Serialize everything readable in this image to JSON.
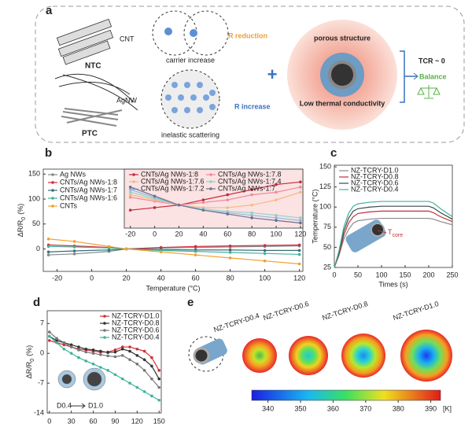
{
  "panel_a": {
    "label": "a",
    "cnt": "CNT",
    "ntc": "NTC",
    "agnw": "AgNW",
    "ptc": "PTC",
    "carrier_increase": "carrier increase",
    "r_reduction": "R reduction",
    "inelastic_scattering": "inelastic scattering",
    "r_increase": "R increase",
    "porous_structure": "porous structure",
    "low_thermal_conductivity": "Low thermal conductivity",
    "tcr": "TCR ~ 0",
    "balance": "Balance"
  },
  "chart_data": [
    {
      "type": "line",
      "panel": "b",
      "markers": true,
      "legend": "upper left",
      "xlabel": "Temperature (°C)",
      "ylabel": {
        "text": "ΔR/R",
        "sub": "0",
        "unit": "(%)"
      },
      "x": [
        -25,
        -10,
        10,
        20,
        40,
        60,
        80,
        100,
        120
      ],
      "xlim": [
        -28,
        122
      ],
      "xticks": [
        -20,
        0,
        20,
        40,
        60,
        80,
        100,
        120
      ],
      "ylim": [
        -45,
        160
      ],
      "yticks": [
        0,
        50,
        100,
        150
      ],
      "series": [
        {
          "name": "Ag NWs",
          "color": "#7f8c8d",
          "values": [
            -12,
            -10,
            -5,
            0,
            2,
            3,
            4,
            5,
            6
          ]
        },
        {
          "name": "CNTs/Ag NWs-1:8",
          "color": "#d62b3a",
          "values": [
            8,
            6,
            3,
            0,
            3,
            5,
            6,
            7,
            8
          ]
        },
        {
          "name": "CNTs/Ag NWs-1:7",
          "color": "#3d6d78",
          "values": [
            -6,
            -4,
            -2,
            0,
            -1,
            -2,
            -2,
            -3,
            -3
          ]
        },
        {
          "name": "CNTs/Ag NWs-1:6",
          "color": "#3fb39b",
          "values": [
            5,
            4,
            2,
            0,
            -3,
            -5,
            -7,
            -9,
            -11
          ]
        },
        {
          "name": "CNTs",
          "color": "#f0a030",
          "values": [
            20,
            15,
            5,
            0,
            -6,
            -12,
            -18,
            -24,
            -30
          ]
        }
      ]
    },
    {
      "type": "line",
      "markers": true,
      "legend": "upper left",
      "x": [
        -20,
        0,
        20,
        40,
        60,
        80,
        100,
        120
      ],
      "xlim": [
        -25,
        122
      ],
      "xticks": [
        -20,
        0,
        20,
        40,
        60,
        80,
        100,
        120
      ],
      "ylim": [
        -9,
        14
      ],
      "series": [
        {
          "name": "CNTs/Ag NWs-1:8",
          "color": "#c8283c",
          "values": [
            -2,
            -1,
            0,
            2,
            4,
            6,
            8,
            9
          ]
        },
        {
          "name": "CNTs/Ag NWs-1:7.8",
          "color": "#f08a9c",
          "values": [
            3,
            1.5,
            0,
            1,
            2,
            4,
            5,
            7
          ]
        },
        {
          "name": "CNTs/Ag NWs-1:7.6",
          "color": "#f5b983",
          "values": [
            4,
            2,
            0,
            -1,
            -1,
            0,
            2,
            5
          ]
        },
        {
          "name": "CNTs/Ag NWs-1:7.4",
          "color": "#8fd3c9",
          "values": [
            5,
            2.5,
            0,
            -1.5,
            -2.5,
            -3,
            -4,
            -5
          ]
        },
        {
          "name": "CNTs/Ag NWs-1:7.2",
          "color": "#8fb8e0",
          "values": [
            6,
            3,
            0,
            -2,
            -3,
            -4,
            -5,
            -6
          ]
        },
        {
          "name": "CNTs/Ag NWs-1:7",
          "color": "#6f6f8f",
          "values": [
            7,
            3.5,
            0,
            -2,
            -3.5,
            -5,
            -6,
            -7
          ]
        }
      ]
    },
    {
      "type": "line",
      "panel": "c",
      "markers": false,
      "legend": "upper left",
      "xlabel": "Times (s)",
      "ylabel": "Temperature (°C)",
      "annotation": {
        "text": "T",
        "sub": "core"
      },
      "x": [
        0,
        10,
        20,
        30,
        40,
        50,
        75,
        100,
        125,
        150,
        175,
        200,
        210,
        225,
        250
      ],
      "xlim": [
        0,
        250
      ],
      "xticks": [
        0,
        50,
        100,
        150,
        200,
        250
      ],
      "ylim": [
        25,
        152
      ],
      "yticks": [
        25,
        50,
        75,
        100,
        125,
        150
      ],
      "series": [
        {
          "name": "NZ-TCRY-D1.0",
          "color": "#8a8a8a",
          "values": [
            25,
            40,
            60,
            72,
            80,
            83,
            85,
            86,
            86,
            86,
            86,
            86,
            85,
            82,
            78
          ]
        },
        {
          "name": "NZ-TCRY-D0.8",
          "color": "#c0303a",
          "values": [
            25,
            42,
            65,
            80,
            88,
            92,
            94,
            95,
            95,
            95,
            95,
            95,
            93,
            88,
            82
          ]
        },
        {
          "name": "NZ-TCRY-D0.6",
          "color": "#3b4a4a",
          "values": [
            25,
            44,
            70,
            86,
            95,
            98,
            100,
            101,
            101,
            101,
            101,
            101,
            99,
            93,
            85
          ]
        },
        {
          "name": "NZ-TCRY-D0.4",
          "color": "#3fb39b",
          "values": [
            25,
            46,
            75,
            92,
            101,
            104,
            106,
            107,
            107,
            107,
            107,
            107,
            105,
            98,
            88
          ]
        }
      ]
    },
    {
      "type": "line",
      "panel": "d",
      "markers": true,
      "legend": "upper right",
      "ylabel": {
        "text": "ΔR/R",
        "sub": "0",
        "unit": "(%)"
      },
      "inset_from": "D0.4",
      "inset_to": "D1.0",
      "x": [
        0,
        10,
        20,
        30,
        40,
        50,
        60,
        70,
        80,
        90,
        100,
        110,
        120,
        130,
        140,
        150
      ],
      "xlim": [
        -3,
        153
      ],
      "xticks": [
        0,
        30,
        60,
        90,
        120,
        150
      ],
      "ylim": [
        -14,
        10
      ],
      "yticks": [
        7,
        0,
        -7,
        -14
      ],
      "series": [
        {
          "name": "NZ-TCRY-D1.0",
          "color": "#d0303a",
          "values": [
            3,
            2.5,
            2,
            1.5,
            1,
            0.8,
            0.5,
            0.3,
            0.3,
            0.8,
            1.5,
            1.5,
            1,
            0.5,
            -1,
            -4
          ]
        },
        {
          "name": "NZ-TCRY-D0.8",
          "color": "#333333",
          "values": [
            4,
            3,
            2.5,
            2,
            1.5,
            1,
            0.8,
            0.5,
            0.2,
            0.3,
            1,
            0.5,
            -0.5,
            -1.5,
            -3,
            -6
          ]
        },
        {
          "name": "NZ-TCRY-D0.6",
          "color": "#777777",
          "values": [
            5,
            3.5,
            2.5,
            1.5,
            0.8,
            0.3,
            0,
            -0.3,
            -0.6,
            -0.8,
            -0.5,
            -1.5,
            -2.5,
            -4,
            -6,
            -8
          ]
        },
        {
          "name": "NZ-TCRY-D0.4",
          "color": "#3fb39b",
          "values": [
            4,
            2.5,
            1,
            0,
            -1,
            -1.8,
            -2.5,
            -3.3,
            -4,
            -5,
            -6,
            -7,
            -8,
            -9,
            -10,
            -11
          ]
        }
      ]
    }
  ],
  "panel_e": {
    "label": "e",
    "samples": [
      "NZ-TCRY-D0.4",
      "NZ-TCRY-D0.6",
      "NZ-TCRY-D0.8",
      "NZ-TCRY-D1.0"
    ],
    "colorbar": {
      "lim": [
        335,
        393
      ],
      "ticks": [
        340,
        350,
        360,
        370,
        380,
        390
      ],
      "unit": "[K]"
    }
  }
}
